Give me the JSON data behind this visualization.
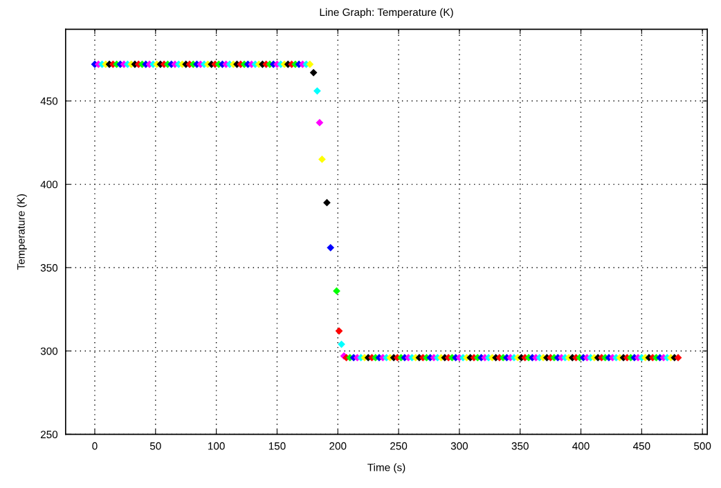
{
  "chart_data": {
    "type": "scatter",
    "title": "Line Graph: Temperature (K)",
    "xlabel": "Time (s)",
    "ylabel": "Temperature (K)",
    "xlim": [
      -24,
      504
    ],
    "ylim": [
      250,
      493
    ],
    "xticks": [
      0,
      50,
      100,
      150,
      200,
      250,
      300,
      350,
      400,
      450,
      500
    ],
    "yticks": [
      250,
      300,
      350,
      400,
      450
    ],
    "grid": true,
    "marker": "diamond",
    "series": [
      {
        "x": [
          0,
          3,
          6,
          9,
          12,
          15,
          18,
          21,
          24,
          27,
          30,
          33,
          36,
          39,
          42,
          45,
          48,
          51,
          54,
          57,
          60,
          63,
          66,
          69,
          72,
          75,
          78,
          81,
          84,
          87,
          90,
          93,
          96,
          99,
          102,
          105,
          108,
          111,
          114,
          117,
          120,
          123,
          126,
          129,
          132,
          135,
          138,
          141,
          144,
          147,
          150,
          153,
          156,
          159,
          162,
          165,
          168,
          171,
          174,
          177,
          180,
          183,
          185,
          187,
          191,
          194,
          199,
          201,
          203,
          205,
          207,
          210,
          213,
          216,
          219,
          222,
          225,
          228,
          231,
          234,
          237,
          240,
          243,
          246,
          249,
          252,
          255,
          258,
          261,
          264,
          267,
          270,
          273,
          276,
          279,
          282,
          285,
          288,
          291,
          294,
          297,
          300,
          303,
          306,
          309,
          312,
          315,
          318,
          321,
          324,
          327,
          330,
          333,
          336,
          339,
          342,
          345,
          348,
          351,
          354,
          357,
          360,
          363,
          366,
          369,
          372,
          375,
          378,
          381,
          384,
          387,
          390,
          393,
          396,
          399,
          402,
          405,
          408,
          411,
          414,
          417,
          420,
          423,
          426,
          429,
          432,
          435,
          438,
          441,
          444,
          447,
          450,
          453,
          456,
          459,
          462,
          465,
          468,
          471,
          474,
          477,
          480
        ],
        "values": [
          472,
          472,
          472,
          472,
          472,
          472,
          472,
          472,
          472,
          472,
          472,
          472,
          472,
          472,
          472,
          472,
          472,
          472,
          472,
          472,
          472,
          472,
          472,
          472,
          472,
          472,
          472,
          472,
          472,
          472,
          472,
          472,
          472,
          472,
          472,
          472,
          472,
          472,
          472,
          472,
          472,
          472,
          472,
          472,
          472,
          472,
          472,
          472,
          472,
          472,
          472,
          472,
          472,
          472,
          472,
          472,
          472,
          472,
          472,
          472,
          467,
          456,
          437,
          415,
          389,
          362,
          336,
          312,
          304,
          297,
          296,
          296,
          296,
          296,
          296,
          296,
          296,
          296,
          296,
          296,
          296,
          296,
          296,
          296,
          296,
          296,
          296,
          296,
          296,
          296,
          296,
          296,
          296,
          296,
          296,
          296,
          296,
          296,
          296,
          296,
          296,
          296,
          296,
          296,
          296,
          296,
          296,
          296,
          296,
          296,
          296,
          296,
          296,
          296,
          296,
          296,
          296,
          296,
          296,
          296,
          296,
          296,
          296,
          296,
          296,
          296,
          296,
          296,
          296,
          296,
          296,
          296,
          296,
          296,
          296,
          296,
          296,
          296,
          296,
          296,
          296,
          296,
          296,
          296,
          296,
          296,
          296,
          296,
          296,
          296,
          296,
          296,
          296,
          296,
          296,
          296,
          296,
          296,
          296,
          296,
          296,
          296
        ],
        "colors": [
          "#0000ff",
          "#ff00ff",
          "#00ffff",
          "#ffff00",
          "#000000",
          "#ff0000",
          "#00ff00",
          "#0000ff",
          "#ff00ff",
          "#00ffff",
          "#ffff00",
          "#000000",
          "#ff0000",
          "#00ff00",
          "#0000ff",
          "#ff00ff",
          "#00ffff",
          "#ffff00",
          "#000000",
          "#ff0000",
          "#00ff00",
          "#0000ff",
          "#ff00ff",
          "#00ffff",
          "#ffff00",
          "#000000",
          "#ff0000",
          "#00ff00",
          "#0000ff",
          "#ff00ff",
          "#00ffff",
          "#ffff00",
          "#000000",
          "#ff0000",
          "#00ff00",
          "#0000ff",
          "#ff00ff",
          "#00ffff",
          "#ffff00",
          "#000000",
          "#ff0000",
          "#00ff00",
          "#0000ff",
          "#ff00ff",
          "#00ffff",
          "#ffff00",
          "#000000",
          "#ff0000",
          "#00ff00",
          "#0000ff",
          "#ff00ff",
          "#00ffff",
          "#ffff00",
          "#000000",
          "#ff0000",
          "#00ff00",
          "#0000ff",
          "#ff00ff",
          "#00ffff",
          "#ffff00",
          "#000000",
          "#00ffff",
          "#ff00ff",
          "#ffff00",
          "#000000",
          "#0000ff",
          "#00ff00",
          "#ff0000",
          "#00ffff",
          "#ff00ff",
          "#ff0000",
          "#00ff00",
          "#0000ff",
          "#ff00ff",
          "#00ffff",
          "#ffff00",
          "#000000",
          "#ff0000",
          "#00ff00",
          "#0000ff",
          "#ff00ff",
          "#00ffff",
          "#ffff00",
          "#000000",
          "#ff0000",
          "#00ff00",
          "#0000ff",
          "#ff00ff",
          "#00ffff",
          "#ffff00",
          "#000000",
          "#ff0000",
          "#00ff00",
          "#0000ff",
          "#ff00ff",
          "#00ffff",
          "#ffff00",
          "#000000",
          "#ff0000",
          "#00ff00",
          "#0000ff",
          "#ff00ff",
          "#00ffff",
          "#ffff00",
          "#000000",
          "#ff0000",
          "#00ff00",
          "#0000ff",
          "#ff00ff",
          "#00ffff",
          "#ffff00",
          "#000000",
          "#ff0000",
          "#00ff00",
          "#0000ff",
          "#ff00ff",
          "#00ffff",
          "#ffff00",
          "#000000",
          "#ff0000",
          "#00ff00",
          "#0000ff",
          "#ff00ff",
          "#00ffff",
          "#ffff00",
          "#000000",
          "#ff0000",
          "#00ff00",
          "#0000ff",
          "#ff00ff",
          "#00ffff",
          "#ffff00",
          "#000000",
          "#ff0000",
          "#00ff00",
          "#0000ff",
          "#ff00ff",
          "#00ffff",
          "#ffff00",
          "#000000",
          "#ff0000",
          "#00ff00",
          "#0000ff",
          "#ff00ff",
          "#00ffff",
          "#ffff00",
          "#000000",
          "#ff0000",
          "#00ff00",
          "#0000ff",
          "#ff00ff",
          "#00ffff",
          "#ffff00",
          "#000000",
          "#ff0000",
          "#00ff00",
          "#0000ff",
          "#ff00ff",
          "#00ffff",
          "#ffff00",
          "#000000",
          "#ff0000"
        ]
      }
    ]
  }
}
